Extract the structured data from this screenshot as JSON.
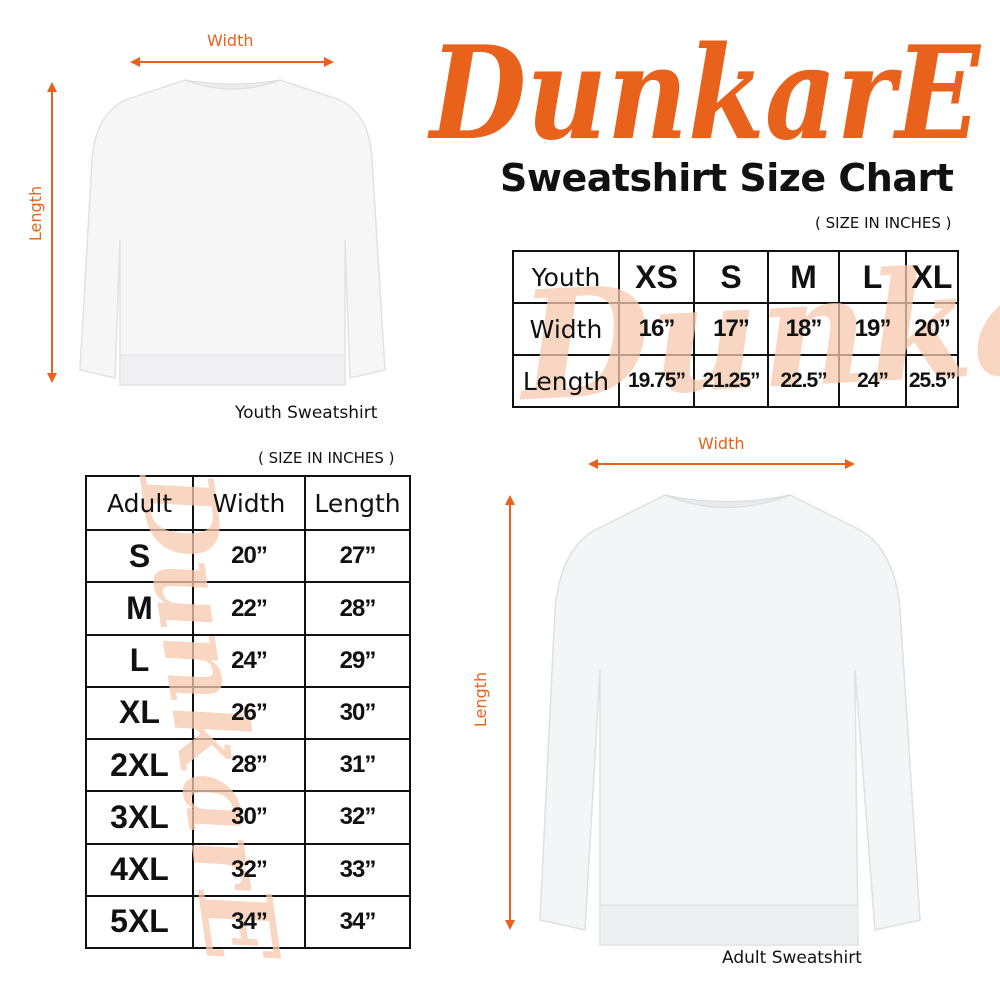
{
  "brand": {
    "logo_text": "DunkarE",
    "color": "#e8621c"
  },
  "title": "Sweatshirt Size Chart",
  "youth": {
    "image_caption": "Youth Sweatshirt",
    "width_label": "Width",
    "length_label": "Length",
    "units_note": "( SIZE IN INCHES )",
    "table": {
      "header": [
        "Youth",
        "XS",
        "S",
        "M",
        "L",
        "XL"
      ],
      "rows": [
        [
          "Width",
          "16”",
          "17”",
          "18”",
          "19”",
          "20”"
        ],
        [
          "Length",
          "19.75”",
          "21.25”",
          "22.5”",
          "24”",
          "25.5”"
        ]
      ]
    }
  },
  "adult": {
    "image_caption": "Adult Sweatshirt",
    "width_label": "Width",
    "length_label": "Length",
    "units_note": "( SIZE IN INCHES )",
    "table": {
      "header": [
        "Adult",
        "Width",
        "Length"
      ],
      "rows": [
        [
          "S",
          "20”",
          "27”"
        ],
        [
          "M",
          "22”",
          "28”"
        ],
        [
          "L",
          "24”",
          "29”"
        ],
        [
          "XL",
          "26”",
          "30”"
        ],
        [
          "2XL",
          "28”",
          "31”"
        ],
        [
          "3XL",
          "30”",
          "32”"
        ],
        [
          "4XL",
          "32”",
          "33”"
        ],
        [
          "5XL",
          "34”",
          "34”"
        ]
      ]
    }
  }
}
